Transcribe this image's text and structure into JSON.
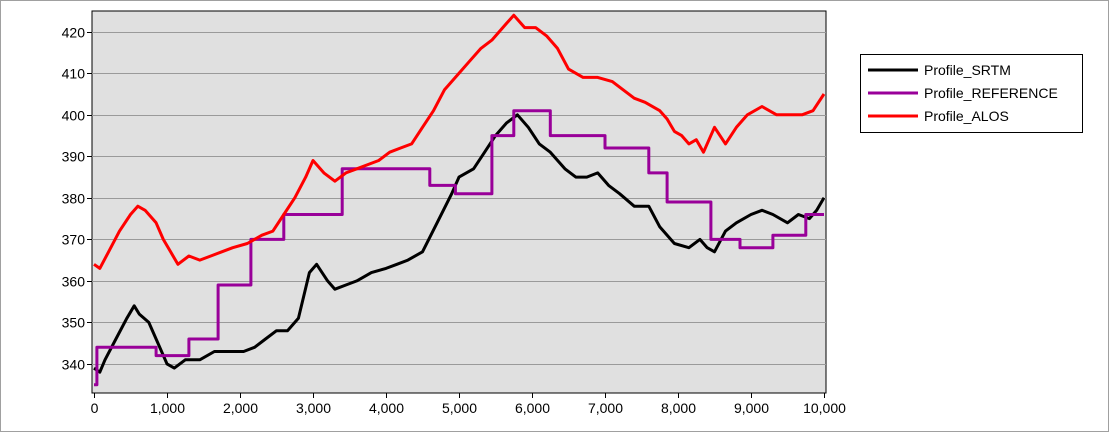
{
  "chart_data": {
    "type": "line",
    "title": "",
    "xlabel": "",
    "ylabel": "",
    "xlim": [
      0,
      10000
    ],
    "ylim": [
      333,
      425
    ],
    "x_ticks": [
      0,
      1000,
      2000,
      3000,
      4000,
      5000,
      6000,
      7000,
      8000,
      9000,
      10000
    ],
    "x_tick_labels": [
      "0",
      "1,000",
      "2,000",
      "3,000",
      "4,000",
      "5,000",
      "6,000",
      "7,000",
      "8,000",
      "9,000",
      "10,000"
    ],
    "y_ticks": [
      340,
      350,
      360,
      370,
      380,
      390,
      400,
      410,
      420
    ],
    "y_tick_labels": [
      "340",
      "350",
      "360",
      "370",
      "380",
      "390",
      "400",
      "410",
      "420"
    ],
    "grid": true,
    "plot_background": "#e0e0e0",
    "legend_position": "right",
    "series": [
      {
        "name": "Profile_SRTM",
        "color": "#000000",
        "step": false,
        "points": [
          [
            0,
            339
          ],
          [
            80,
            338
          ],
          [
            150,
            341
          ],
          [
            300,
            346
          ],
          [
            450,
            351
          ],
          [
            550,
            354
          ],
          [
            620,
            352
          ],
          [
            750,
            350
          ],
          [
            850,
            346
          ],
          [
            1000,
            340
          ],
          [
            1100,
            339
          ],
          [
            1250,
            341
          ],
          [
            1450,
            341
          ],
          [
            1650,
            343
          ],
          [
            1850,
            343
          ],
          [
            2050,
            343
          ],
          [
            2200,
            344
          ],
          [
            2350,
            346
          ],
          [
            2500,
            348
          ],
          [
            2650,
            348
          ],
          [
            2800,
            351
          ],
          [
            2950,
            362
          ],
          [
            3050,
            364
          ],
          [
            3200,
            360
          ],
          [
            3300,
            358
          ],
          [
            3450,
            359
          ],
          [
            3600,
            360
          ],
          [
            3800,
            362
          ],
          [
            4000,
            363
          ],
          [
            4150,
            364
          ],
          [
            4300,
            365
          ],
          [
            4500,
            367
          ],
          [
            4700,
            374
          ],
          [
            4900,
            381
          ],
          [
            5000,
            385
          ],
          [
            5200,
            387
          ],
          [
            5350,
            391
          ],
          [
            5500,
            395
          ],
          [
            5650,
            398
          ],
          [
            5800,
            400
          ],
          [
            5950,
            397
          ],
          [
            6100,
            393
          ],
          [
            6250,
            391
          ],
          [
            6450,
            387
          ],
          [
            6600,
            385
          ],
          [
            6750,
            385
          ],
          [
            6900,
            386
          ],
          [
            7050,
            383
          ],
          [
            7200,
            381
          ],
          [
            7400,
            378
          ],
          [
            7600,
            378
          ],
          [
            7750,
            373
          ],
          [
            7950,
            369
          ],
          [
            8150,
            368
          ],
          [
            8300,
            370
          ],
          [
            8400,
            368
          ],
          [
            8500,
            367
          ],
          [
            8650,
            372
          ],
          [
            8800,
            374
          ],
          [
            9000,
            376
          ],
          [
            9150,
            377
          ],
          [
            9300,
            376
          ],
          [
            9500,
            374
          ],
          [
            9650,
            376
          ],
          [
            9800,
            375
          ],
          [
            9900,
            377
          ],
          [
            10000,
            380
          ]
        ]
      },
      {
        "name": "Profile_REFERENCE",
        "color": "#990099",
        "step": true,
        "points": [
          [
            0,
            335
          ],
          [
            40,
            344
          ],
          [
            850,
            342
          ],
          [
            1300,
            346
          ],
          [
            1700,
            359
          ],
          [
            2150,
            370
          ],
          [
            2600,
            376
          ],
          [
            3400,
            387
          ],
          [
            4600,
            383
          ],
          [
            4950,
            381
          ],
          [
            5450,
            395
          ],
          [
            5750,
            401
          ],
          [
            6250,
            395
          ],
          [
            7000,
            392
          ],
          [
            7600,
            386
          ],
          [
            7850,
            379
          ],
          [
            8450,
            370
          ],
          [
            8850,
            368
          ],
          [
            9300,
            371
          ],
          [
            9750,
            376
          ],
          [
            10000,
            376
          ]
        ]
      },
      {
        "name": "Profile_ALOS",
        "color": "#ff0000",
        "step": false,
        "points": [
          [
            0,
            364
          ],
          [
            80,
            363
          ],
          [
            200,
            367
          ],
          [
            350,
            372
          ],
          [
            500,
            376
          ],
          [
            600,
            378
          ],
          [
            700,
            377
          ],
          [
            850,
            374
          ],
          [
            950,
            370
          ],
          [
            1050,
            367
          ],
          [
            1150,
            364
          ],
          [
            1300,
            366
          ],
          [
            1450,
            365
          ],
          [
            1600,
            366
          ],
          [
            1750,
            367
          ],
          [
            1900,
            368
          ],
          [
            2100,
            369
          ],
          [
            2300,
            371
          ],
          [
            2450,
            372
          ],
          [
            2600,
            376
          ],
          [
            2750,
            380
          ],
          [
            2900,
            385
          ],
          [
            3000,
            389
          ],
          [
            3150,
            386
          ],
          [
            3300,
            384
          ],
          [
            3450,
            386
          ],
          [
            3600,
            387
          ],
          [
            3750,
            388
          ],
          [
            3900,
            389
          ],
          [
            4050,
            391
          ],
          [
            4200,
            392
          ],
          [
            4350,
            393
          ],
          [
            4500,
            397
          ],
          [
            4650,
            401
          ],
          [
            4800,
            406
          ],
          [
            5000,
            410
          ],
          [
            5150,
            413
          ],
          [
            5300,
            416
          ],
          [
            5450,
            418
          ],
          [
            5550,
            420
          ],
          [
            5650,
            422
          ],
          [
            5750,
            424
          ],
          [
            5900,
            421
          ],
          [
            6050,
            421
          ],
          [
            6200,
            419
          ],
          [
            6350,
            416
          ],
          [
            6500,
            411
          ],
          [
            6700,
            409
          ],
          [
            6900,
            409
          ],
          [
            7100,
            408
          ],
          [
            7250,
            406
          ],
          [
            7400,
            404
          ],
          [
            7550,
            403
          ],
          [
            7750,
            401
          ],
          [
            7850,
            399
          ],
          [
            7950,
            396
          ],
          [
            8050,
            395
          ],
          [
            8150,
            393
          ],
          [
            8250,
            394
          ],
          [
            8350,
            391
          ],
          [
            8500,
            397
          ],
          [
            8650,
            393
          ],
          [
            8800,
            397
          ],
          [
            8950,
            400
          ],
          [
            9150,
            402
          ],
          [
            9350,
            400
          ],
          [
            9550,
            400
          ],
          [
            9700,
            400
          ],
          [
            9850,
            401
          ],
          [
            10000,
            405
          ]
        ]
      }
    ]
  }
}
